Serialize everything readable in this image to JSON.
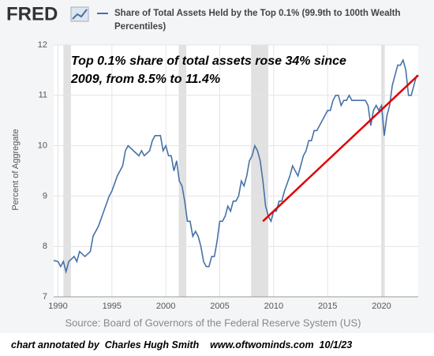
{
  "chart_data": {
    "type": "line",
    "logo": "FRED",
    "title": "Share of Total Assets Held by the Top 0.1% (99.9th to 100th Wealth Percentiles)",
    "ylabel": "Percent of Aggregate",
    "source": "Source: Board of Governors of the Federal Reserve System (US)",
    "annotation": [
      "Top 0.1% share of total assets rose 34% since",
      "2009, from 8.5% to 11.4%"
    ],
    "footer": "chart annotated by  Charles Hugh Smith    www.oftwominds.com  10/1/23",
    "xlim": [
      1989.6,
      2023.4
    ],
    "ylim": [
      7,
      12
    ],
    "xticks": [
      1990,
      1995,
      2000,
      2005,
      2010,
      2015,
      2020
    ],
    "yticks": [
      7,
      8,
      9,
      10,
      11,
      12
    ],
    "grid": true,
    "recessions": [
      [
        1990.5,
        1991.2
      ],
      [
        2001.2,
        2001.9
      ],
      [
        2007.9,
        2009.5
      ],
      [
        2020.0,
        2020.3
      ]
    ],
    "series": [
      {
        "name": "Share of Total Assets Held by the Top 0.1% (99.9th to 100th Wealth Percentiles)",
        "color": "#4572a7",
        "x": [
          1989.6,
          1990.0,
          1990.25,
          1990.5,
          1990.75,
          1991.0,
          1991.5,
          1991.75,
          1992.0,
          1992.5,
          1993.0,
          1993.25,
          1993.75,
          1994.25,
          1994.75,
          1995.0,
          1995.5,
          1996.0,
          1996.25,
          1996.5,
          1997.0,
          1997.5,
          1997.75,
          1998.0,
          1998.5,
          1998.75,
          1999.0,
          1999.5,
          1999.75,
          2000.0,
          2000.25,
          2000.5,
          2000.75,
          2001.0,
          2001.25,
          2001.5,
          2001.75,
          2002.0,
          2002.25,
          2002.5,
          2002.75,
          2003.0,
          2003.25,
          2003.5,
          2003.75,
          2004.0,
          2004.25,
          2004.5,
          2004.75,
          2005.0,
          2005.25,
          2005.5,
          2005.75,
          2006.0,
          2006.25,
          2006.5,
          2006.75,
          2007.0,
          2007.25,
          2007.5,
          2007.75,
          2008.0,
          2008.25,
          2008.5,
          2008.75,
          2009.0,
          2009.25,
          2009.5,
          2009.75,
          2010.0,
          2010.25,
          2010.5,
          2010.75,
          2011.0,
          2011.5,
          2011.75,
          2012.0,
          2012.25,
          2012.5,
          2012.75,
          2013.0,
          2013.25,
          2013.5,
          2013.75,
          2014.0,
          2014.5,
          2014.75,
          2015.0,
          2015.25,
          2015.5,
          2015.75,
          2016.0,
          2016.25,
          2016.5,
          2016.75,
          2017.0,
          2017.25,
          2017.5,
          2018.0,
          2018.5,
          2018.75,
          2019.0,
          2019.25,
          2019.5,
          2019.75,
          2020.0,
          2020.25,
          2020.5,
          2020.75,
          2021.0,
          2021.25,
          2021.5,
          2021.75,
          2022.0,
          2022.25,
          2022.5,
          2022.75,
          2023.0,
          2023.25
        ],
        "values": [
          7.72,
          7.7,
          7.6,
          7.7,
          7.5,
          7.7,
          7.8,
          7.7,
          7.9,
          7.8,
          7.9,
          8.2,
          8.4,
          8.7,
          9.0,
          9.1,
          9.4,
          9.6,
          9.9,
          10.0,
          9.9,
          9.8,
          9.9,
          9.8,
          9.9,
          10.1,
          10.2,
          10.2,
          9.9,
          10.0,
          9.8,
          9.8,
          9.5,
          9.7,
          9.3,
          9.2,
          8.9,
          8.5,
          8.5,
          8.2,
          8.3,
          8.2,
          8.0,
          7.7,
          7.6,
          7.6,
          7.8,
          7.8,
          8.1,
          8.5,
          8.5,
          8.6,
          8.8,
          8.7,
          8.9,
          8.9,
          9.0,
          9.3,
          9.2,
          9.4,
          9.7,
          9.8,
          10.0,
          9.9,
          9.7,
          9.3,
          8.8,
          8.6,
          8.5,
          8.7,
          8.7,
          8.9,
          8.9,
          9.1,
          9.4,
          9.6,
          9.5,
          9.4,
          9.6,
          9.8,
          9.9,
          10.1,
          10.1,
          10.3,
          10.3,
          10.5,
          10.6,
          10.7,
          10.7,
          10.9,
          11.0,
          11.0,
          10.8,
          10.9,
          10.9,
          11.0,
          10.9,
          10.9,
          10.9,
          10.9,
          10.8,
          10.4,
          10.7,
          10.8,
          10.7,
          10.8,
          10.2,
          10.6,
          10.8,
          11.2,
          11.4,
          11.6,
          11.6,
          11.7,
          11.5,
          11.0,
          11.0,
          11.2,
          11.4
        ]
      }
    ],
    "trend": {
      "x": [
        2009.0,
        2023.4
      ],
      "values": [
        8.5,
        11.4
      ],
      "color": "#e00000"
    }
  }
}
